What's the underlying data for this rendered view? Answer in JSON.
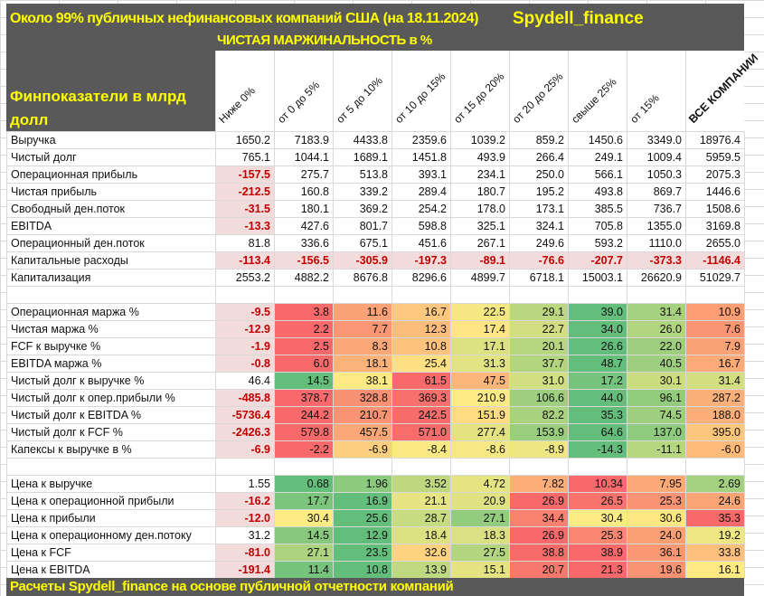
{
  "header": {
    "title": "Около 99% публичных нефинансовых компаний США (на 18.11.2024)",
    "brand": "Spydell_finance",
    "subtitle": "ЧИСТАЯ МАРЖИНАЛЬНОСТЬ в %",
    "row_label_header": "Финпоказатели в млрд долл"
  },
  "columns": [
    "Ниже 0%",
    "от 0 до 5%",
    "от 5 до 10%",
    "от 10 до 15%",
    "от 15 до 20%",
    "от 20 до 25%",
    "свыше 25%",
    "от 15%",
    "ВСЕ КОМПАНИИ"
  ],
  "colors": {
    "band_bg": "#595959",
    "band_text": "#ffff00",
    "negative_bg": "#f2dcdb",
    "negative_text": "#c00000",
    "scale_low": "#f8696b",
    "scale_mid": "#ffeb84",
    "scale_high": "#63be7b"
  },
  "sections": [
    {
      "name": "financials",
      "rows": [
        {
          "label": "Выручка",
          "values": [
            "1650.2",
            "7183.9",
            "4433.8",
            "2359.6",
            "1039.2",
            "859.2",
            "1450.6",
            "3349.0",
            "18976.4"
          ]
        },
        {
          "label": "Чистый долг",
          "values": [
            "765.1",
            "1044.1",
            "1689.1",
            "1451.8",
            "493.9",
            "266.4",
            "249.1",
            "1009.4",
            "5959.5"
          ]
        },
        {
          "label": "Операционная прибыль",
          "values": [
            "-157.5",
            "275.7",
            "513.8",
            "393.1",
            "234.1",
            "250.0",
            "566.1",
            "1050.3",
            "2075.3"
          ]
        },
        {
          "label": "Чистая прибыль",
          "values": [
            "-212.5",
            "160.8",
            "339.2",
            "289.4",
            "180.7",
            "195.2",
            "493.8",
            "869.7",
            "1446.6"
          ]
        },
        {
          "label": "Свободный ден.поток",
          "values": [
            "-31.5",
            "180.1",
            "369.2",
            "254.2",
            "178.0",
            "173.1",
            "385.5",
            "736.7",
            "1508.6"
          ]
        },
        {
          "label": "EBITDA",
          "values": [
            "-13.3",
            "427.6",
            "801.7",
            "598.8",
            "325.1",
            "324.1",
            "705.8",
            "1355.0",
            "3169.8"
          ]
        },
        {
          "label": "Операционный ден.поток",
          "values": [
            "81.8",
            "336.6",
            "675.1",
            "451.6",
            "267.1",
            "249.6",
            "593.2",
            "1110.0",
            "2655.0"
          ]
        },
        {
          "label": "Капитальные расходы",
          "values": [
            "-113.4",
            "-156.5",
            "-305.9",
            "-197.3",
            "-89.1",
            "-76.6",
            "-207.7",
            "-373.3",
            "-1146.4"
          ]
        },
        {
          "label": "Капитализация",
          "values": [
            "2553.2",
            "4882.2",
            "8676.8",
            "8296.6",
            "4899.7",
            "6718.1",
            "15003.1",
            "26620.9",
            "51029.7"
          ]
        }
      ]
    },
    {
      "name": "ratios",
      "rows": [
        {
          "label": "Операционная маржа %",
          "values": [
            "-9.5",
            "3.8",
            "11.6",
            "16.7",
            "22.5",
            "29.1",
            "39.0",
            "31.4",
            "10.9"
          ],
          "higher_is_better": true
        },
        {
          "label": "Чистая маржа %",
          "values": [
            "-12.9",
            "2.2",
            "7.7",
            "12.3",
            "17.4",
            "22.7",
            "34.0",
            "26.0",
            "7.6"
          ],
          "higher_is_better": true
        },
        {
          "label": "FCF к выручке %",
          "values": [
            "-1.9",
            "2.5",
            "8.3",
            "10.8",
            "17.1",
            "20.1",
            "26.6",
            "22.0",
            "7.9"
          ],
          "higher_is_better": true
        },
        {
          "label": "EBITDA маржа %",
          "values": [
            "-0.8",
            "6.0",
            "18.1",
            "25.4",
            "31.3",
            "37.7",
            "48.7",
            "40.5",
            "16.7"
          ],
          "higher_is_better": true
        },
        {
          "label": "Чистый долг к выручке %",
          "values": [
            "46.4",
            "14.5",
            "38.1",
            "61.5",
            "47.5",
            "31.0",
            "17.2",
            "30.1",
            "31.4"
          ],
          "higher_is_better": false
        },
        {
          "label": "Чистый долг к опер.прибыли %",
          "values": [
            "-485.8",
            "378.7",
            "328.8",
            "369.3",
            "210.9",
            "106.6",
            "44.0",
            "96.1",
            "287.2"
          ],
          "higher_is_better": false
        },
        {
          "label": "Чистый долг к EBITDA %",
          "values": [
            "-5736.4",
            "244.2",
            "210.7",
            "242.5",
            "151.9",
            "82.2",
            "35.3",
            "74.5",
            "188.0"
          ],
          "higher_is_better": false
        },
        {
          "label": "Чистый долг к FCF %",
          "values": [
            "-2426.3",
            "579.8",
            "457.5",
            "571.0",
            "277.4",
            "153.9",
            "64.6",
            "137.0",
            "395.0"
          ],
          "higher_is_better": false
        },
        {
          "label": "Капексы к выручке в %",
          "values": [
            "-6.9",
            "-2.2",
            "-6.9",
            "-8.4",
            "-8.6",
            "-8.9",
            "-14.3",
            "-11.1",
            "-6.0"
          ],
          "higher_is_better": false
        }
      ]
    },
    {
      "name": "valuation",
      "rows": [
        {
          "label": "Цена к выручке",
          "values": [
            "1.55",
            "0.68",
            "1.96",
            "3.52",
            "4.72",
            "7.82",
            "10.34",
            "7.95",
            "2.69"
          ],
          "higher_is_better": false
        },
        {
          "label": "Цена к операционной прибыли",
          "values": [
            "-16.2",
            "17.7",
            "16.9",
            "21.1",
            "20.9",
            "26.9",
            "26.5",
            "25.3",
            "24.6"
          ],
          "higher_is_better": false
        },
        {
          "label": "Цена к прибыли",
          "values": [
            "-12.0",
            "30.4",
            "25.6",
            "28.7",
            "27.1",
            "34.4",
            "30.4",
            "30.6",
            "35.3"
          ],
          "higher_is_better": false
        },
        {
          "label": "Цена к операционному ден.потоку",
          "values": [
            "31.2",
            "14.5",
            "12.9",
            "18.4",
            "18.3",
            "26.9",
            "25.3",
            "24.0",
            "19.2"
          ],
          "higher_is_better": false
        },
        {
          "label": "Цена к FCF",
          "values": [
            "-81.0",
            "27.1",
            "23.5",
            "32.6",
            "27.5",
            "38.8",
            "38.9",
            "36.1",
            "33.8"
          ],
          "higher_is_better": false
        },
        {
          "label": "Цена к EBITDA",
          "values": [
            "-191.4",
            "11.4",
            "10.8",
            "13.9",
            "15.1",
            "20.7",
            "21.3",
            "19.6",
            "16.1"
          ],
          "higher_is_better": false
        }
      ]
    }
  ],
  "footer": "Расчеты Spydell_finance на основе публичной отчетности компаний"
}
